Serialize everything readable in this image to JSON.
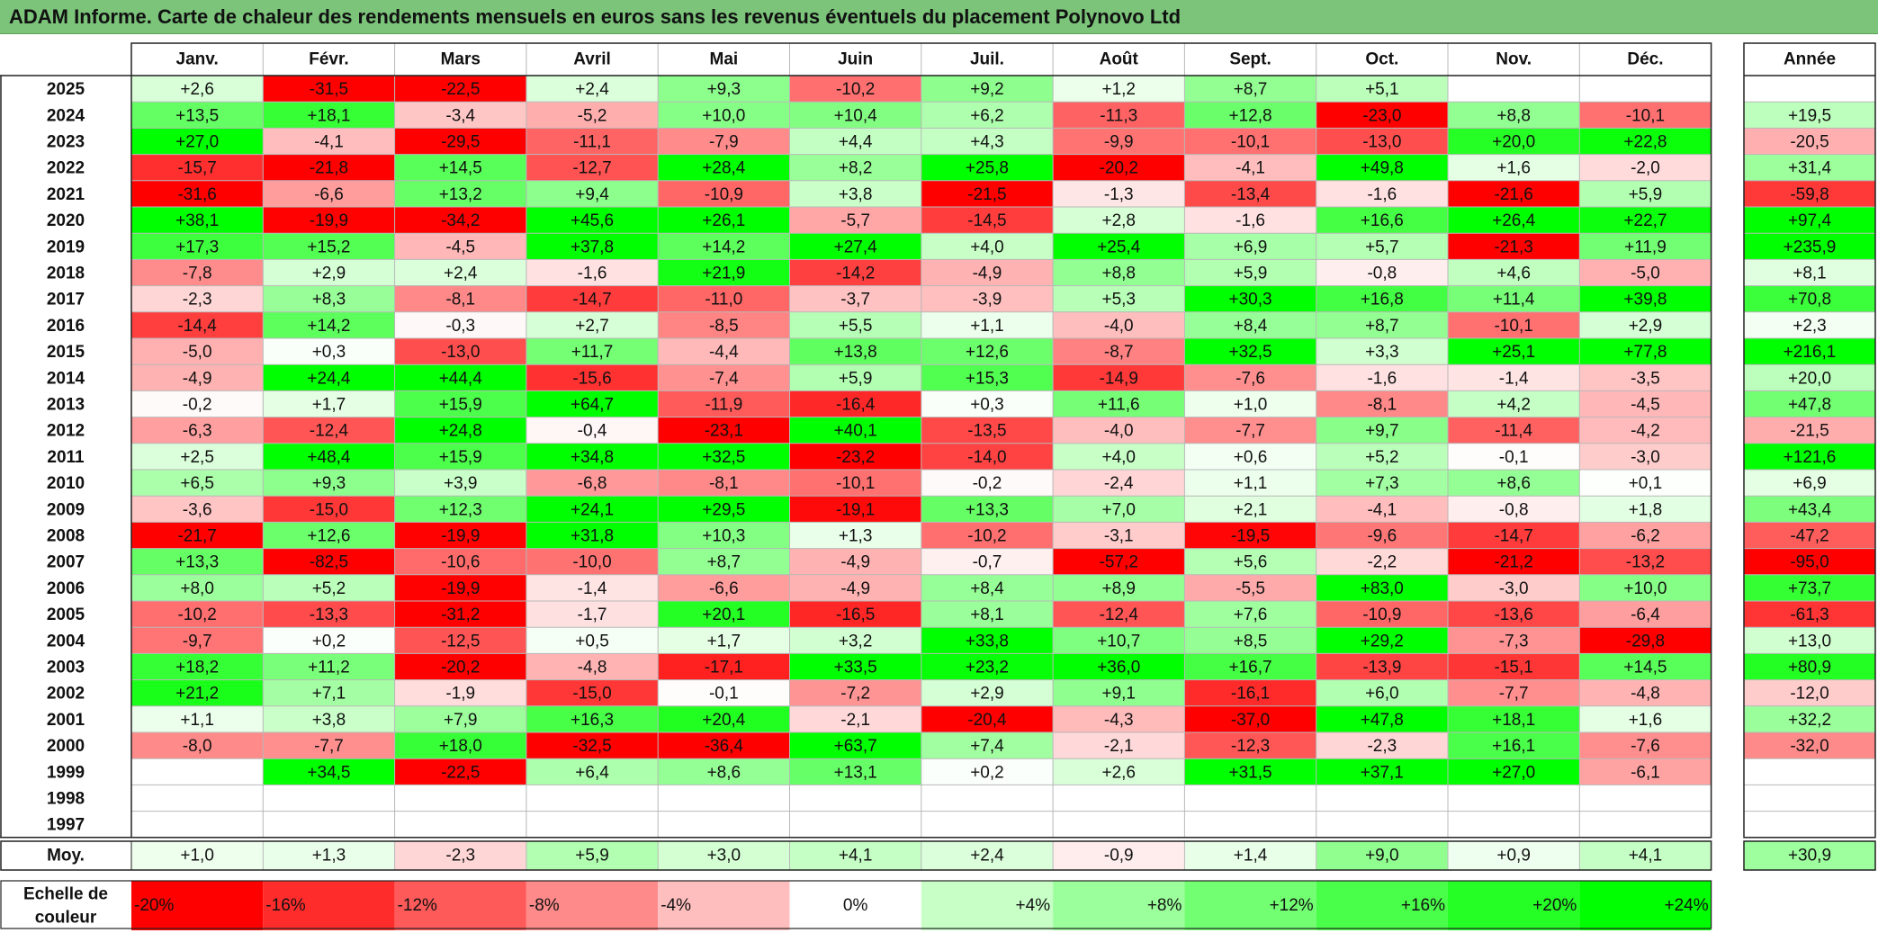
{
  "title": "ADAM Informe. Carte de chaleur des rendements mensuels en euros sans les revenus éventuels du placement Polynovo Ltd",
  "chart_data": {
    "type": "heatmap",
    "title": "ADAM Informe. Carte de chaleur des rendements mensuels en euros sans les revenus éventuels du placement Polynovo Ltd",
    "columns": [
      "Janv.",
      "Févr.",
      "Mars",
      "Avril",
      "Mai",
      "Juin",
      "Juil.",
      "Août",
      "Sept.",
      "Oct.",
      "Nov.",
      "Déc."
    ],
    "annual_header": "Année",
    "rows": [
      {
        "year": "2025",
        "values": [
          "+2,6",
          "-31,5",
          "-22,5",
          "+2,4",
          "+9,3",
          "-10,2",
          "+9,2",
          "+1,2",
          "+8,7",
          "+5,1",
          "",
          ""
        ],
        "annual": ""
      },
      {
        "year": "2024",
        "values": [
          "+13,5",
          "+18,1",
          "-3,4",
          "-5,2",
          "+10,0",
          "+10,4",
          "+6,2",
          "-11,3",
          "+12,8",
          "-23,0",
          "+8,8",
          "-10,1"
        ],
        "annual": "+19,5"
      },
      {
        "year": "2023",
        "values": [
          "+27,0",
          "-4,1",
          "-29,5",
          "-11,1",
          "-7,9",
          "+4,4",
          "+4,3",
          "-9,9",
          "-10,1",
          "-13,0",
          "+20,0",
          "+22,8"
        ],
        "annual": "-20,5"
      },
      {
        "year": "2022",
        "values": [
          "-15,7",
          "-21,8",
          "+14,5",
          "-12,7",
          "+28,4",
          "+8,2",
          "+25,8",
          "-20,2",
          "-4,1",
          "+49,8",
          "+1,6",
          "-2,0"
        ],
        "annual": "+31,4"
      },
      {
        "year": "2021",
        "values": [
          "-31,6",
          "-6,6",
          "+13,2",
          "+9,4",
          "-10,9",
          "+3,8",
          "-21,5",
          "-1,3",
          "-13,4",
          "-1,6",
          "-21,6",
          "+5,9"
        ],
        "annual": "-59,8"
      },
      {
        "year": "2020",
        "values": [
          "+38,1",
          "-19,9",
          "-34,2",
          "+45,6",
          "+26,1",
          "-5,7",
          "-14,5",
          "+2,8",
          "-1,6",
          "+16,6",
          "+26,4",
          "+22,7"
        ],
        "annual": "+97,4"
      },
      {
        "year": "2019",
        "values": [
          "+17,3",
          "+15,2",
          "-4,5",
          "+37,8",
          "+14,2",
          "+27,4",
          "+4,0",
          "+25,4",
          "+6,9",
          "+5,7",
          "-21,3",
          "+11,9"
        ],
        "annual": "+235,9"
      },
      {
        "year": "2018",
        "values": [
          "-7,8",
          "+2,9",
          "+2,4",
          "-1,6",
          "+21,9",
          "-14,2",
          "-4,9",
          "+8,8",
          "+5,9",
          "-0,8",
          "+4,6",
          "-5,0"
        ],
        "annual": "+8,1"
      },
      {
        "year": "2017",
        "values": [
          "-2,3",
          "+8,3",
          "-8,1",
          "-14,7",
          "-11,0",
          "-3,7",
          "-3,9",
          "+5,3",
          "+30,3",
          "+16,8",
          "+11,4",
          "+39,8"
        ],
        "annual": "+70,8"
      },
      {
        "year": "2016",
        "values": [
          "-14,4",
          "+14,2",
          "-0,3",
          "+2,7",
          "-8,5",
          "+5,5",
          "+1,1",
          "-4,0",
          "+8,4",
          "+8,7",
          "-10,1",
          "+2,9"
        ],
        "annual": "+2,3"
      },
      {
        "year": "2015",
        "values": [
          "-5,0",
          "+0,3",
          "-13,0",
          "+11,7",
          "-4,4",
          "+13,8",
          "+12,6",
          "-8,7",
          "+32,5",
          "+3,3",
          "+25,1",
          "+77,8"
        ],
        "annual": "+216,1"
      },
      {
        "year": "2014",
        "values": [
          "-4,9",
          "+24,4",
          "+44,4",
          "-15,6",
          "-7,4",
          "+5,9",
          "+15,3",
          "-14,9",
          "-7,6",
          "-1,6",
          "-1,4",
          "-3,5"
        ],
        "annual": "+20,0"
      },
      {
        "year": "2013",
        "values": [
          "-0,2",
          "+1,7",
          "+15,9",
          "+64,7",
          "-11,9",
          "-16,4",
          "+0,3",
          "+11,6",
          "+1,0",
          "-8,1",
          "+4,2",
          "-4,5"
        ],
        "annual": "+47,8"
      },
      {
        "year": "2012",
        "values": [
          "-6,3",
          "-12,4",
          "+24,8",
          "-0,4",
          "-23,1",
          "+40,1",
          "-13,5",
          "-4,0",
          "-7,7",
          "+9,7",
          "-11,4",
          "-4,2"
        ],
        "annual": "-21,5"
      },
      {
        "year": "2011",
        "values": [
          "+2,5",
          "+48,4",
          "+15,9",
          "+34,8",
          "+32,5",
          "-23,2",
          "-14,0",
          "+4,0",
          "+0,6",
          "+5,2",
          "-0,1",
          "-3,0"
        ],
        "annual": "+121,6"
      },
      {
        "year": "2010",
        "values": [
          "+6,5",
          "+9,3",
          "+3,9",
          "-6,8",
          "-8,1",
          "-10,1",
          "-0,2",
          "-2,4",
          "+1,1",
          "+7,3",
          "+8,6",
          "+0,1"
        ],
        "annual": "+6,9"
      },
      {
        "year": "2009",
        "values": [
          "-3,6",
          "-15,0",
          "+12,3",
          "+24,1",
          "+29,5",
          "-19,1",
          "+13,3",
          "+7,0",
          "+2,1",
          "-4,1",
          "-0,8",
          "+1,8"
        ],
        "annual": "+43,4"
      },
      {
        "year": "2008",
        "values": [
          "-21,7",
          "+12,6",
          "-19,9",
          "+31,8",
          "+10,3",
          "+1,3",
          "-10,2",
          "-3,1",
          "-19,5",
          "-9,6",
          "-14,7",
          "-6,2"
        ],
        "annual": "-47,2"
      },
      {
        "year": "2007",
        "values": [
          "+13,3",
          "-82,5",
          "-10,6",
          "-10,0",
          "+8,7",
          "-4,9",
          "-0,7",
          "-57,2",
          "+5,6",
          "-2,2",
          "-21,2",
          "-13,2"
        ],
        "annual": "-95,0"
      },
      {
        "year": "2006",
        "values": [
          "+8,0",
          "+5,2",
          "-19,9",
          "-1,4",
          "-6,6",
          "-4,9",
          "+8,4",
          "+8,9",
          "-5,5",
          "+83,0",
          "-3,0",
          "+10,0"
        ],
        "annual": "+73,7"
      },
      {
        "year": "2005",
        "values": [
          "-10,2",
          "-13,3",
          "-31,2",
          "-1,7",
          "+20,1",
          "-16,5",
          "+8,1",
          "-12,4",
          "+7,6",
          "-10,9",
          "-13,6",
          "-6,4"
        ],
        "annual": "-61,3"
      },
      {
        "year": "2004",
        "values": [
          "-9,7",
          "+0,2",
          "-12,5",
          "+0,5",
          "+1,7",
          "+3,2",
          "+33,8",
          "+10,7",
          "+8,5",
          "+29,2",
          "-7,3",
          "-29,8"
        ],
        "annual": "+13,0"
      },
      {
        "year": "2003",
        "values": [
          "+18,2",
          "+11,2",
          "-20,2",
          "-4,8",
          "-17,1",
          "+33,5",
          "+23,2",
          "+36,0",
          "+16,7",
          "-13,9",
          "-15,1",
          "+14,5"
        ],
        "annual": "+80,9"
      },
      {
        "year": "2002",
        "values": [
          "+21,2",
          "+7,1",
          "-1,9",
          "-15,0",
          "-0,1",
          "-7,2",
          "+2,9",
          "+9,1",
          "-16,1",
          "+6,0",
          "-7,7",
          "-4,8"
        ],
        "annual": "-12,0"
      },
      {
        "year": "2001",
        "values": [
          "+1,1",
          "+3,8",
          "+7,9",
          "+16,3",
          "+20,4",
          "-2,1",
          "-20,4",
          "-4,3",
          "-37,0",
          "+47,8",
          "+18,1",
          "+1,6"
        ],
        "annual": "+32,2"
      },
      {
        "year": "2000",
        "values": [
          "-8,0",
          "-7,7",
          "+18,0",
          "-32,5",
          "-36,4",
          "+63,7",
          "+7,4",
          "-2,1",
          "-12,3",
          "-2,3",
          "+16,1",
          "-7,6"
        ],
        "annual": "-32,0"
      },
      {
        "year": "1999",
        "values": [
          "",
          "+34,5",
          "-22,5",
          "+6,4",
          "+8,6",
          "+13,1",
          "+0,2",
          "+2,6",
          "+31,5",
          "+37,1",
          "+27,0",
          "-6,1"
        ],
        "annual": ""
      },
      {
        "year": "1998",
        "values": [
          "",
          "",
          "",
          "",
          "",
          "",
          "",
          "",
          "",
          "",
          "",
          ""
        ],
        "annual": ""
      },
      {
        "year": "1997",
        "values": [
          "",
          "",
          "",
          "",
          "",
          "",
          "",
          "",
          "",
          "",
          "",
          ""
        ],
        "annual": ""
      }
    ],
    "average": {
      "label": "Moy.",
      "values": [
        "+1,0",
        "+1,3",
        "-2,3",
        "+5,9",
        "+3,0",
        "+4,1",
        "+2,4",
        "-0,9",
        "+1,4",
        "+9,0",
        "+0,9",
        "+4,1"
      ],
      "annual": "+30,9"
    },
    "legend": {
      "label_line1": "Echelle de",
      "label_line2": "couleur",
      "items": [
        "-20%",
        "-16%",
        "-12%",
        "-8%",
        "-4%",
        "0%",
        "+4%",
        "+8%",
        "+12%",
        "+16%",
        "+20%",
        "+24%"
      ],
      "values": [
        -20,
        -16,
        -12,
        -8,
        -4,
        0,
        4,
        8,
        12,
        16,
        20,
        24
      ]
    },
    "colors": {
      "neg_full": "#ff0000",
      "pos_full": "#00ff00",
      "neutral": "#ffffff",
      "title_bg": "#7bc47a"
    }
  }
}
